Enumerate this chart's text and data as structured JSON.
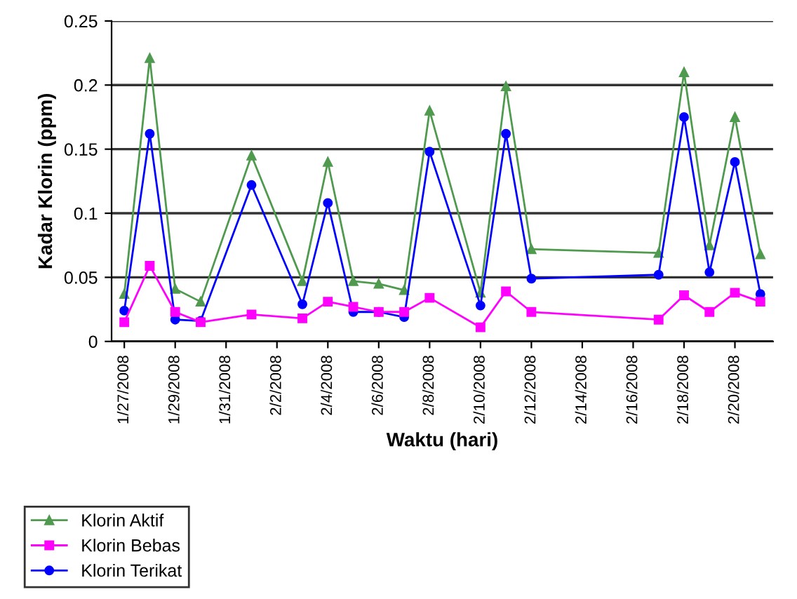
{
  "chart_data": {
    "type": "line",
    "xlabel": "Waktu (hari)",
    "ylabel": "Kadar Klorin (ppm)",
    "x": [
      "2008-01-27",
      "2008-01-28",
      "2008-01-29",
      "2008-01-30",
      "2008-02-01",
      "2008-02-03",
      "2008-02-04",
      "2008-02-05",
      "2008-02-06",
      "2008-02-07",
      "2008-02-08",
      "2008-02-10",
      "2008-02-11",
      "2008-02-12",
      "2008-02-17",
      "2008-02-18",
      "2008-02-19",
      "2008-02-20",
      "2008-02-21"
    ],
    "series": [
      {
        "name": "Klorin Aktif",
        "color": "#4f9a4f",
        "marker": "triangle",
        "values": [
          0.037,
          0.221,
          0.041,
          0.031,
          0.145,
          0.047,
          0.14,
          0.047,
          0.045,
          0.04,
          0.18,
          0.038,
          0.199,
          0.072,
          0.069,
          0.21,
          0.075,
          0.175,
          0.068
        ]
      },
      {
        "name": "Klorin Bebas",
        "color": "#ff00ff",
        "marker": "square",
        "values": [
          0.015,
          0.059,
          0.023,
          0.015,
          0.021,
          0.018,
          0.031,
          0.027,
          0.023,
          0.023,
          0.034,
          0.011,
          0.039,
          0.023,
          0.017,
          0.036,
          0.023,
          0.038,
          0.031
        ]
      },
      {
        "name": "Klorin Terikat",
        "color": "#0000ff",
        "marker": "circle",
        "values": [
          0.024,
          0.162,
          0.017,
          0.016,
          0.122,
          0.029,
          0.108,
          0.023,
          0.023,
          0.019,
          0.148,
          0.028,
          0.162,
          0.049,
          0.052,
          0.175,
          0.054,
          0.14,
          0.037
        ]
      }
    ],
    "xlim": [
      "2008-01-26T12:00",
      "2008-02-21T12:00"
    ],
    "xticks": [
      {
        "value": "2008-01-27",
        "label": "1/27/2008"
      },
      {
        "value": "2008-01-29",
        "label": "1/29/2008"
      },
      {
        "value": "2008-01-31",
        "label": "1/31/2008"
      },
      {
        "value": "2008-02-02",
        "label": "2/2/2008"
      },
      {
        "value": "2008-02-04",
        "label": "2/4/2008"
      },
      {
        "value": "2008-02-06",
        "label": "2/6/2008"
      },
      {
        "value": "2008-02-08",
        "label": "2/8/2008"
      },
      {
        "value": "2008-02-10",
        "label": "2/10/2008"
      },
      {
        "value": "2008-02-12",
        "label": "2/12/2008"
      },
      {
        "value": "2008-02-14",
        "label": "2/14/2008"
      },
      {
        "value": "2008-02-16",
        "label": "2/16/2008"
      },
      {
        "value": "2008-02-18",
        "label": "2/18/2008"
      },
      {
        "value": "2008-02-20",
        "label": "2/20/2008"
      }
    ],
    "ylim": [
      0,
      0.25
    ],
    "yticks": [
      0,
      0.05,
      0.1,
      0.15,
      0.2,
      0.25
    ],
    "grid": "y",
    "legend": "bottom left",
    "line_style": "solid"
  }
}
